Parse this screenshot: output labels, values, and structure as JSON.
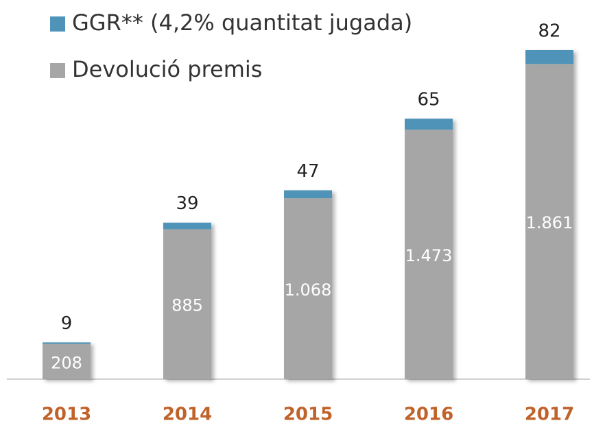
{
  "chart_data": {
    "type": "stacked-bar",
    "categories": [
      "2013",
      "2014",
      "2015",
      "2016",
      "2017"
    ],
    "series": [
      {
        "name": "GGR** (4,2% quantitat jugada)",
        "color": "#4f93b8",
        "values": [
          9,
          39,
          47,
          65,
          82
        ]
      },
      {
        "name": "Devolució premis",
        "color": "#a6a6a6",
        "values": [
          208,
          885,
          1068,
          1473,
          1861
        ],
        "value_labels": [
          "208",
          "885",
          "1.068",
          "1.473",
          "1.861"
        ]
      }
    ],
    "legend": "top-left"
  }
}
